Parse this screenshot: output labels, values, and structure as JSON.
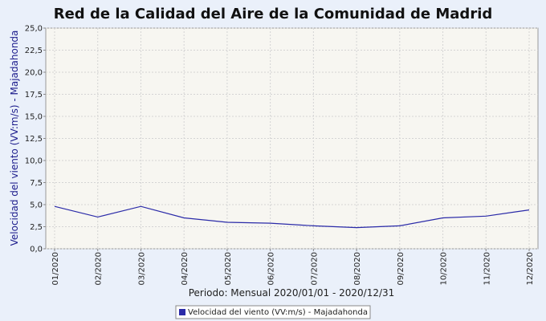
{
  "chart_data": {
    "type": "line",
    "title": "Red de la Calidad del Aire de la Comunidad de Madrid",
    "y_label": "Velocidad del viento (VV:m/s) - Majadahonda",
    "x_label": "Periodo: Mensual 2020/01/01 - 2020/12/31",
    "categories": [
      "01/2020",
      "02/2020",
      "03/2020",
      "04/2020",
      "05/2020",
      "06/2020",
      "07/2020",
      "08/2020",
      "09/2020",
      "10/2020",
      "11/2020",
      "12/2020"
    ],
    "series": [
      {
        "name": "Velocidad del viento (VV:m/s) - Majadahonda",
        "color": "#2a2aa8",
        "values": [
          4.8,
          3.6,
          4.8,
          3.5,
          3.0,
          2.9,
          2.6,
          2.4,
          2.6,
          3.5,
          3.7,
          4.4
        ]
      }
    ],
    "ylim": [
      0,
      25
    ],
    "yticks": [
      {
        "value": 0,
        "label": "0,0"
      },
      {
        "value": 2.5,
        "label": "2,5"
      },
      {
        "value": 5,
        "label": "5,0"
      },
      {
        "value": 7.5,
        "label": "7,5"
      },
      {
        "value": 10,
        "label": "10,0"
      },
      {
        "value": 12.5,
        "label": "12,5"
      },
      {
        "value": 15,
        "label": "15,0"
      },
      {
        "value": 17.5,
        "label": "17,5"
      },
      {
        "value": 20,
        "label": "20,0"
      },
      {
        "value": 22.5,
        "label": "22,5"
      },
      {
        "value": 25,
        "label": "25,0"
      }
    ],
    "grid": true
  }
}
